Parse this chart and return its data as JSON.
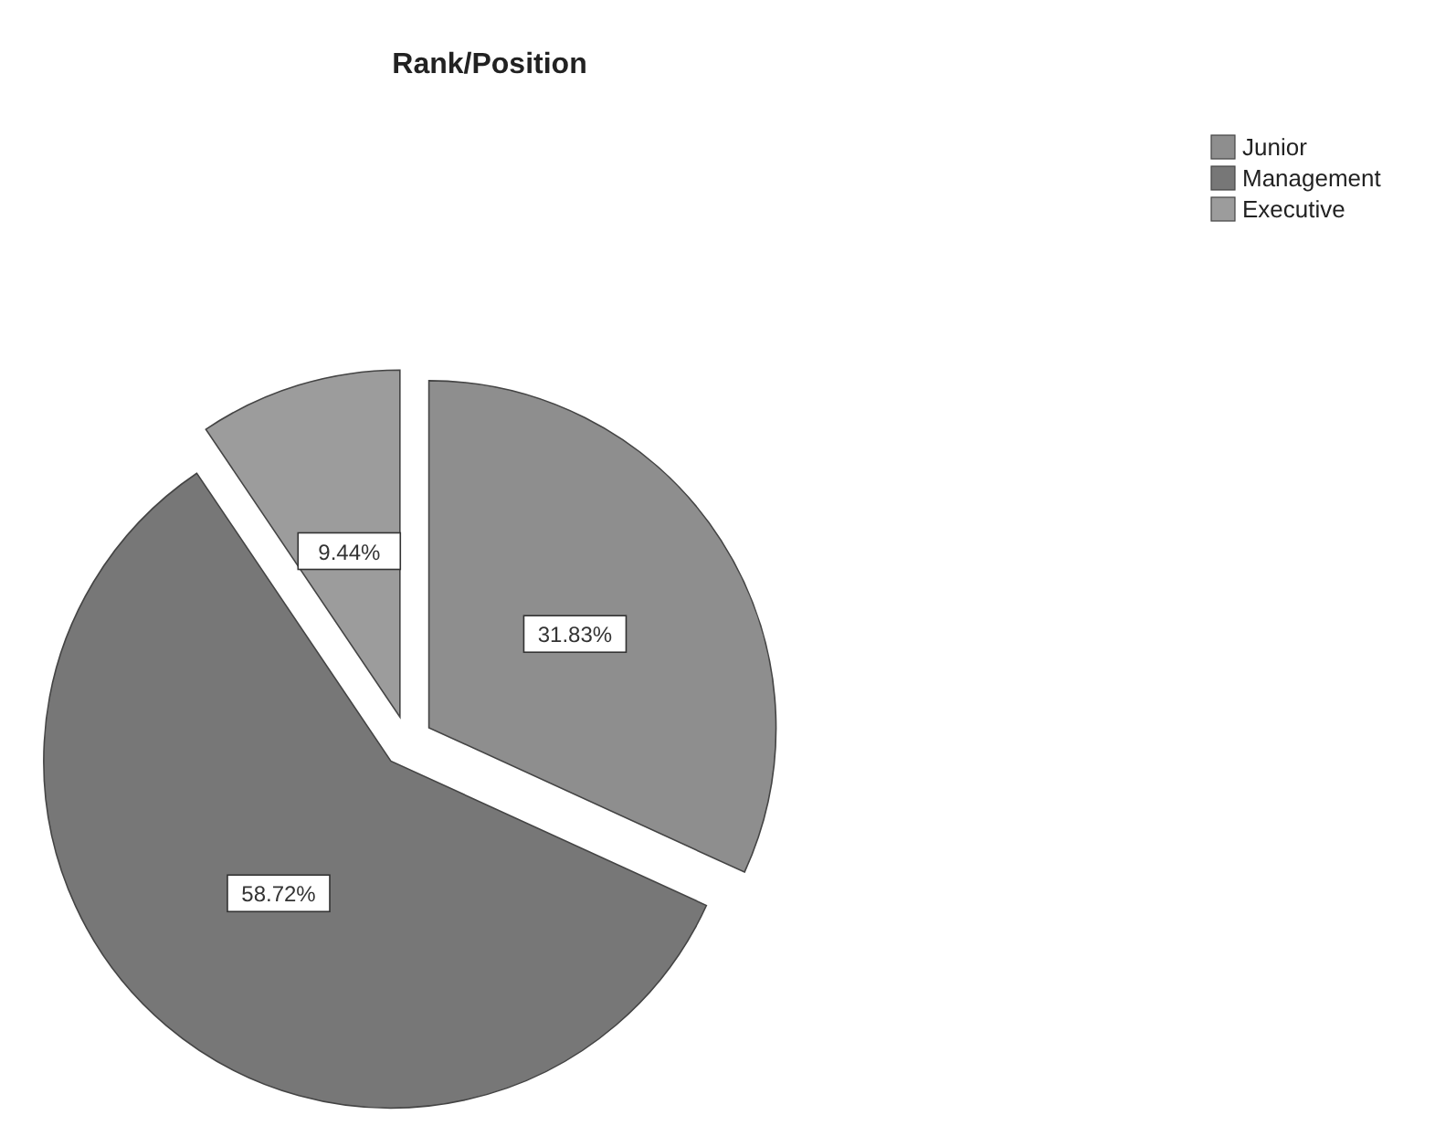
{
  "chart_data": {
    "type": "pie",
    "title": "Rank/Position",
    "categories": [
      "Junior",
      "Management",
      "Executive"
    ],
    "values": [
      31.83,
      58.72,
      9.44
    ],
    "colors": [
      "#8e8e8e",
      "#777777",
      "#9c9c9c"
    ],
    "value_labels": [
      "31.83%",
      "58.72%",
      "9.44%"
    ],
    "legend": "top right"
  }
}
